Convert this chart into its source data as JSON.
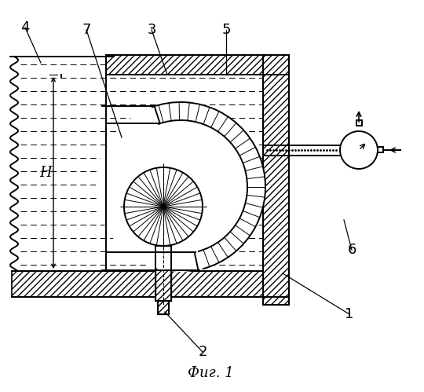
{
  "title": "Фиг. 1",
  "title_fontsize": 13,
  "background_color": "#ffffff",
  "line_color": "#000000",
  "label_fontsize": 13,
  "lw": 1.4,
  "hatch_density": 8
}
